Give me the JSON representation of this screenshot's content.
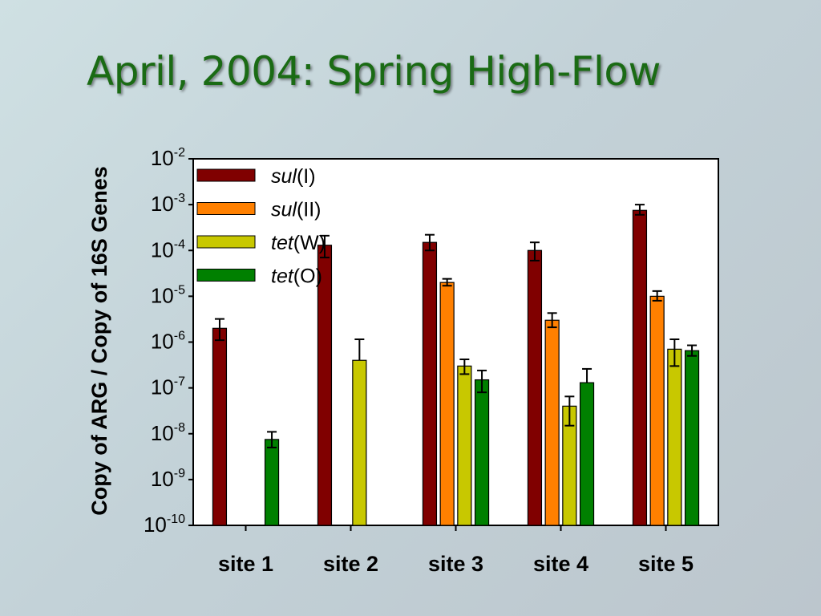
{
  "slide": {
    "title": "April, 2004: Spring High-Flow"
  },
  "chart_data": {
    "type": "bar",
    "title": "",
    "ylabel": "Copy of ARG / Copy of 16S Genes",
    "xlabel": "",
    "yscale": "log",
    "ylim": [
      1e-10,
      0.01
    ],
    "y_ticks": [
      {
        "base": "10",
        "exp": "-2"
      },
      {
        "base": "10",
        "exp": "-3"
      },
      {
        "base": "10",
        "exp": "-4"
      },
      {
        "base": "10",
        "exp": "-5"
      },
      {
        "base": "10",
        "exp": "-6"
      },
      {
        "base": "10",
        "exp": "-7"
      },
      {
        "base": "10",
        "exp": "-8"
      },
      {
        "base": "10",
        "exp": "-9"
      },
      {
        "base": "10",
        "exp": "-10"
      }
    ],
    "categories": [
      "site 1",
      "site 2",
      "site 3",
      "site 4",
      "site 5"
    ],
    "legend_position": "top-left inside plot",
    "series": [
      {
        "name": "sul(I)",
        "label_italic": "sul",
        "label_rest": "(I)",
        "color": "#800000",
        "values": [
          2e-06,
          0.00013,
          0.00015,
          0.0001,
          0.00075
        ],
        "err_high": [
          3.2e-06,
          0.00021,
          0.00022,
          0.00015,
          0.001
        ],
        "err_low": [
          1.1e-06,
          7e-05,
          0.0001,
          6e-05,
          0.0006
        ]
      },
      {
        "name": "sul(II)",
        "label_italic": "sul",
        "label_rest": "(II)",
        "color": "#ff8000",
        "values": [
          null,
          null,
          2e-05,
          3e-06,
          1e-05
        ],
        "err_high": [
          null,
          null,
          2.4e-05,
          4.3e-06,
          1.3e-05
        ],
        "err_low": [
          null,
          null,
          1.7e-05,
          2.1e-06,
          8e-06
        ]
      },
      {
        "name": "tet(W)",
        "label_italic": "tet",
        "label_rest": "(W)",
        "color": "#c8c800",
        "values": [
          null,
          4e-07,
          3e-07,
          4e-08,
          7e-07
        ],
        "err_high": [
          null,
          1.15e-06,
          4.2e-07,
          6.5e-08,
          1.15e-06
        ],
        "err_low": [
          null,
          null,
          2e-07,
          1.5e-08,
          3e-07
        ]
      },
      {
        "name": "tet(O)",
        "label_italic": "tet",
        "label_rest": "(O)",
        "color": "#008000",
        "values": [
          7.5e-09,
          null,
          1.5e-07,
          1.3e-07,
          6.5e-07
        ],
        "err_high": [
          1.1e-08,
          null,
          2.4e-07,
          2.6e-07,
          8.5e-07
        ],
        "err_low": [
          5e-09,
          null,
          8e-08,
          null,
          5e-07
        ]
      }
    ]
  }
}
